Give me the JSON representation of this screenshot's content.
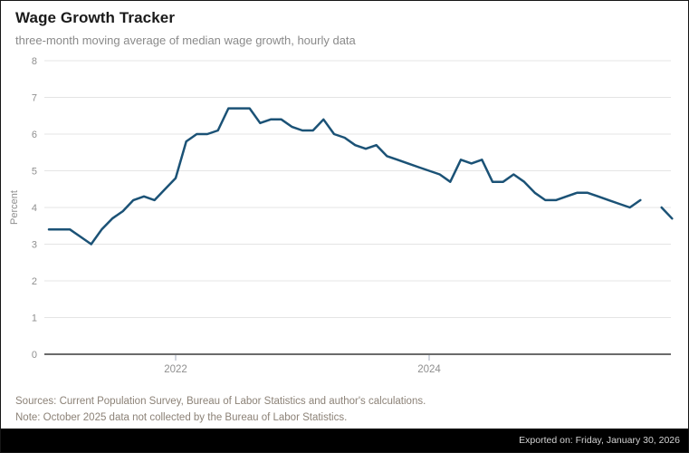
{
  "header": {
    "title": "Wage Growth Tracker",
    "subtitle": "three-month moving average of median wage growth, hourly data"
  },
  "chart_data": {
    "type": "line",
    "title": "Wage Growth Tracker",
    "subtitle": "three-month moving average of median wage growth, hourly data",
    "xlabel": "",
    "ylabel": "Percent",
    "ylim": [
      0,
      8
    ],
    "yticks": [
      0,
      1,
      2,
      3,
      4,
      5,
      6,
      7,
      8
    ],
    "grid": true,
    "legend": "none",
    "xticks": [
      {
        "label": "2022",
        "month_index": 12
      },
      {
        "label": "2024",
        "month_index": 36
      }
    ],
    "x_months": [
      "2021-01",
      "2021-02",
      "2021-03",
      "2021-04",
      "2021-05",
      "2021-06",
      "2021-07",
      "2021-08",
      "2021-09",
      "2021-10",
      "2021-11",
      "2021-12",
      "2022-01",
      "2022-02",
      "2022-03",
      "2022-04",
      "2022-05",
      "2022-06",
      "2022-07",
      "2022-08",
      "2022-09",
      "2022-10",
      "2022-11",
      "2022-12",
      "2023-01",
      "2023-02",
      "2023-03",
      "2023-04",
      "2023-05",
      "2023-06",
      "2023-07",
      "2023-08",
      "2023-09",
      "2023-10",
      "2023-11",
      "2023-12",
      "2024-01",
      "2024-02",
      "2024-03",
      "2024-04",
      "2024-05",
      "2024-06",
      "2024-07",
      "2024-08",
      "2024-09",
      "2024-10",
      "2024-11",
      "2024-12",
      "2025-01",
      "2025-02",
      "2025-03",
      "2025-04",
      "2025-05",
      "2025-06",
      "2025-07",
      "2025-08",
      "2025-09",
      "2025-10",
      "2025-11",
      "2025-12"
    ],
    "series": [
      {
        "name": "Median wage growth, hourly workers (3-month moving average)",
        "color": "#1b5276",
        "values": [
          3.4,
          3.4,
          3.4,
          3.2,
          3.0,
          3.4,
          3.7,
          3.9,
          4.2,
          4.3,
          4.2,
          4.5,
          4.8,
          5.8,
          6.0,
          6.0,
          6.1,
          6.7,
          6.7,
          6.7,
          6.3,
          6.4,
          6.4,
          6.2,
          6.1,
          6.1,
          6.4,
          6.0,
          5.9,
          5.7,
          5.6,
          5.7,
          5.4,
          5.3,
          5.2,
          5.1,
          5.0,
          4.9,
          4.7,
          5.3,
          5.2,
          5.3,
          4.7,
          4.7,
          4.9,
          4.7,
          4.4,
          4.2,
          4.2,
          4.3,
          4.4,
          4.4,
          4.3,
          4.2,
          4.1,
          4.0,
          4.2,
          null,
          4.0,
          3.7
        ]
      }
    ],
    "missing_data_months": [
      "2025-10"
    ]
  },
  "colors": {
    "line": "#1b5276",
    "gridline": "#e4e4e4",
    "axis_line": "#6b6b6b",
    "tick_label": "#8f8f8f",
    "export_bar_bg": "#000000"
  },
  "footer": {
    "sources": "Sources: Current Population Survey, Bureau of Labor Statistics and author's calculations.",
    "note": "Note: October 2025 data not collected by the Bureau of Labor Statistics."
  },
  "export_bar": {
    "label": "Exported on: Friday, January 30, 2026"
  }
}
